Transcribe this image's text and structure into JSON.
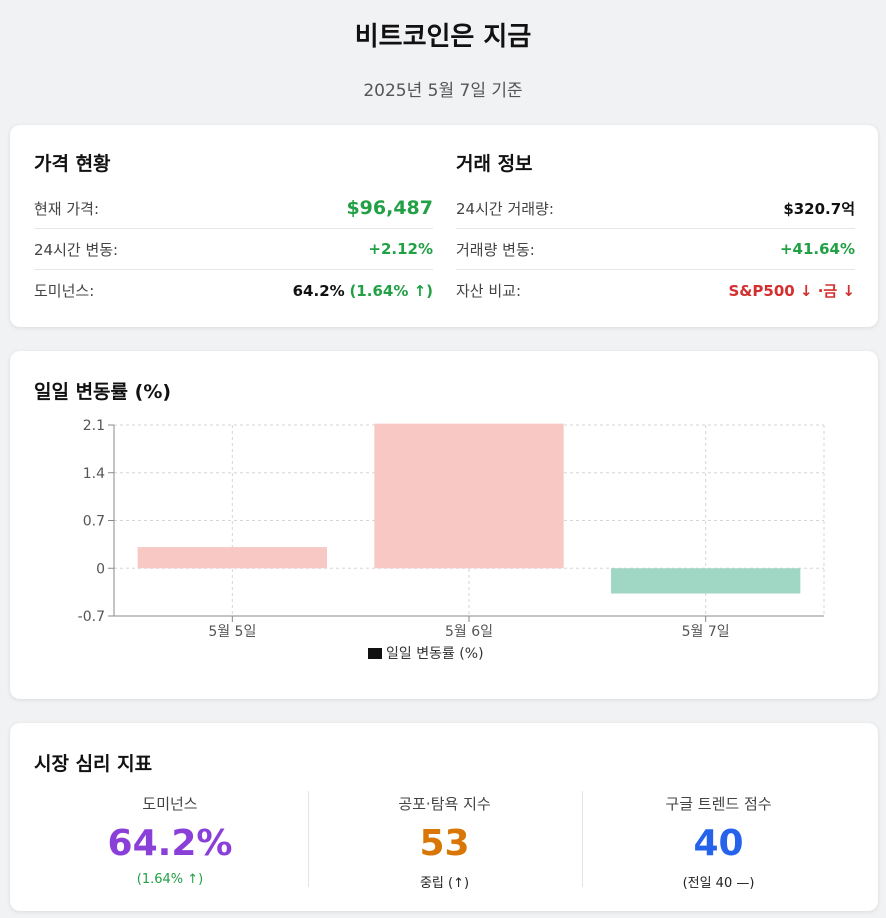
{
  "header": {
    "title": "비트코인은 지금",
    "subtitle": "2025년 5월 7일 기준"
  },
  "price_status": {
    "title": "가격 현황",
    "rows": [
      {
        "label": "현재 가격:",
        "value": "$96,487"
      },
      {
        "label": "24시간 변동:",
        "value": "+2.12%"
      },
      {
        "label": "도미넌스:",
        "value": "64.2%",
        "change": "(1.64% ↑)"
      }
    ]
  },
  "trade_info": {
    "title": "거래 정보",
    "rows": [
      {
        "label": "24시간 거래량:",
        "value": "$320.7억"
      },
      {
        "label": "거래량 변동:",
        "value": "+41.64%"
      },
      {
        "label": "자산 비교:",
        "value": "S&P500 ↓ ·금 ↓"
      }
    ]
  },
  "colors": {
    "positive": "#22a045",
    "negative": "#d32f2f",
    "bar_positive": "#f8c8c4",
    "bar_negative": "#9fd6c4",
    "purple": "#8b3fd9",
    "orange": "#d97706",
    "blue": "#2563eb"
  },
  "chart_section": {
    "title": "일일 변동률 (%)"
  },
  "chart_data": {
    "type": "bar",
    "title": "",
    "categories": [
      "5월 5일",
      "5월 6일",
      "5월 7일"
    ],
    "series": [
      {
        "name": "일일 변동률 (%)",
        "values": [
          0.31,
          2.12,
          -0.37
        ]
      }
    ],
    "ylim": [
      -0.7,
      2.1
    ],
    "yticks": [
      "2.1",
      "1.4",
      "0.7",
      "0",
      "-0.7"
    ],
    "ytick_values": [
      2.1,
      1.4,
      0.7,
      0,
      -0.7
    ],
    "grid": true,
    "legend": "bottom"
  },
  "sentiment": {
    "title": "시장 심리 지표",
    "items": [
      {
        "label": "도미넌스",
        "value": "64.2%",
        "note": "(1.64% ↑)"
      },
      {
        "label": "공포·탐욕 지수",
        "value": "53",
        "note": "중립 (↑)"
      },
      {
        "label": "구글 트렌드 점수",
        "value": "40",
        "note": "(전일 40 —)"
      }
    ]
  }
}
